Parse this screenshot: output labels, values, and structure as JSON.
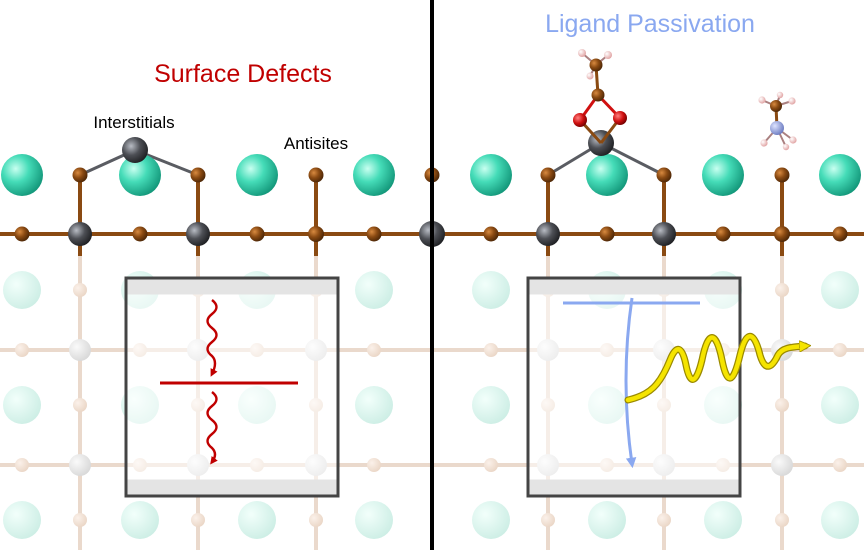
{
  "labels": {
    "left_title": "Surface Defects",
    "right_title": "Ligand Passivation",
    "interstitials": "Interstitials",
    "antisites": "Antisites"
  },
  "colors": {
    "defect_red": "#c00000",
    "passivation_blue": "#8aa8f0",
    "cation_teal": "#3dd6b0",
    "anion_brown": "#8a4a12",
    "metal_gray": "#4d4f55",
    "oxygen_red": "#d01010",
    "hydrogen_pink": "#f0b8b8",
    "nitrogen_blue": "#8a9ad8",
    "emission_yellow": "#f5e400",
    "divider": "#000000"
  },
  "icons": {
    "carrier_trap_arrow": "wavy-down-arrow",
    "radiative_emission": "wavy-yellow-arrow",
    "relaxation_arrow": "curved-down-arrow"
  }
}
